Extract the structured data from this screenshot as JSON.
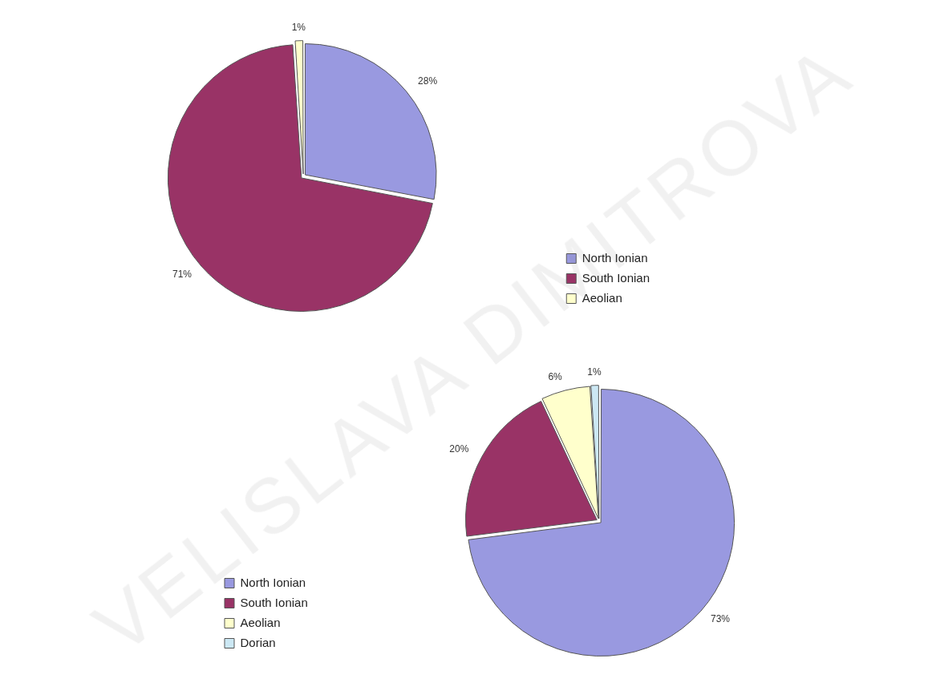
{
  "watermark": "VELISLAVA DIMITROVA",
  "chart_data": [
    {
      "type": "pie",
      "categories": [
        "North Ionian",
        "South Ionian",
        "Aeolian"
      ],
      "values": [
        28,
        71,
        1
      ],
      "value_labels": [
        "28%",
        "71%",
        "1%"
      ],
      "colors": [
        "#9999e0",
        "#993366",
        "#ffffcc"
      ],
      "data_labels": true,
      "legend": "bottom-right"
    },
    {
      "type": "pie",
      "categories": [
        "North Ionian",
        "South Ionian",
        "Aeolian",
        "Dorian"
      ],
      "values": [
        73,
        20,
        6,
        1
      ],
      "value_labels": [
        "73%",
        "20%",
        "6%",
        "1%"
      ],
      "colors": [
        "#9999e0",
        "#993366",
        "#ffffcc",
        "#cce8f4"
      ],
      "data_labels": true,
      "legend": "bottom-left"
    }
  ]
}
